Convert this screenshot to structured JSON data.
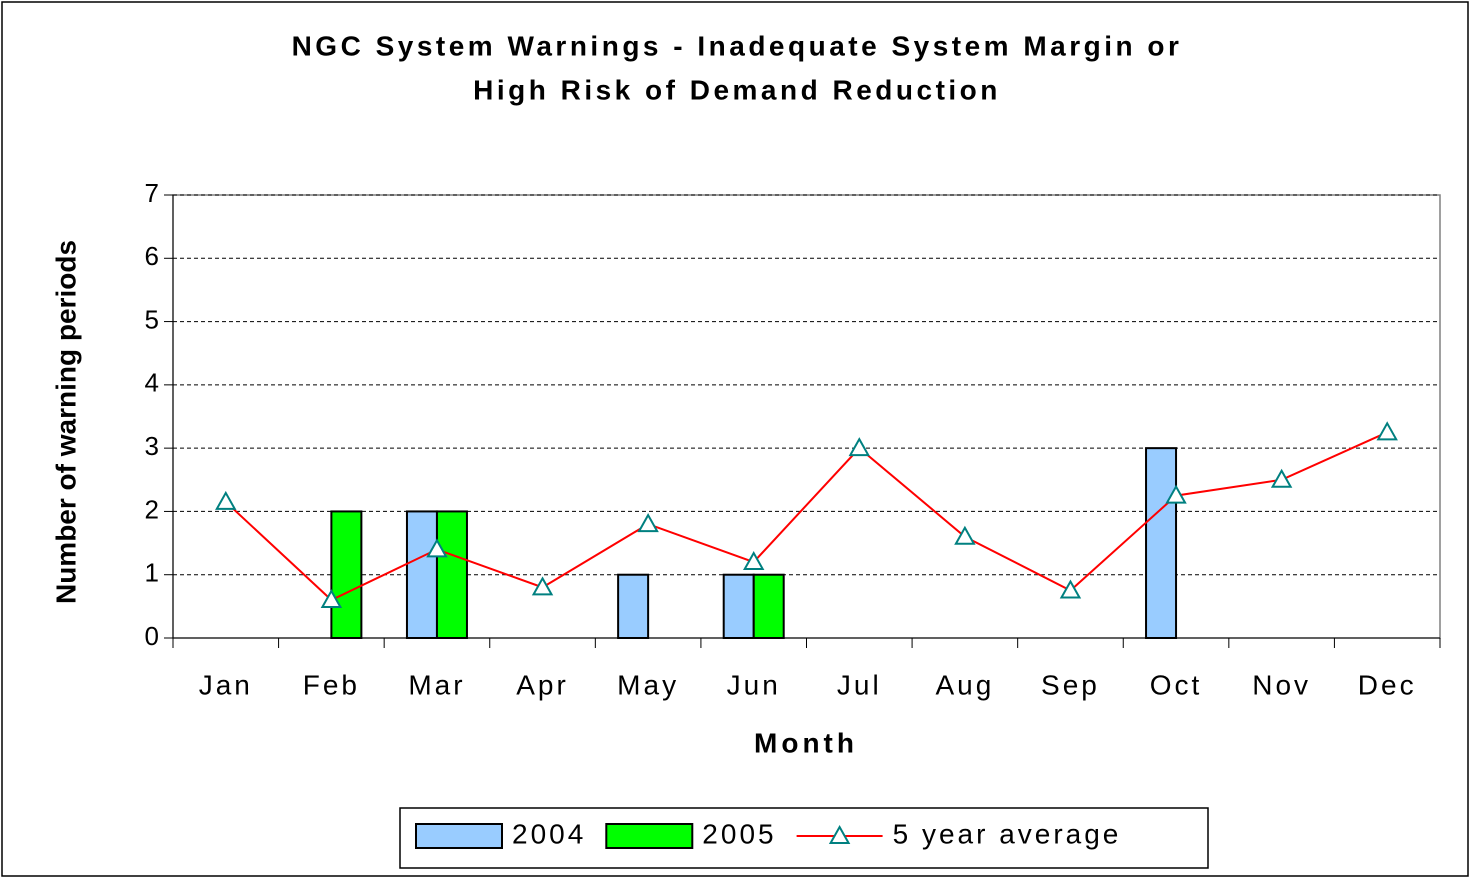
{
  "chart_data": {
    "type": "bar_line",
    "title": [
      "NGC System Warnings - Inadequate System Margin or",
      "High Risk of Demand Reduction"
    ],
    "x_label": "Month",
    "y_label": "Number of warning periods",
    "categories": [
      "Jan",
      "Feb",
      "Mar",
      "Apr",
      "May",
      "Jun",
      "Jul",
      "Aug",
      "Sep",
      "Oct",
      "Nov",
      "Dec"
    ],
    "series": [
      {
        "name": "2004",
        "type": "bar",
        "color": "#99ccff",
        "values": [
          0,
          0,
          2,
          0,
          1,
          1,
          0,
          0,
          0,
          3,
          0,
          0
        ]
      },
      {
        "name": "2005",
        "type": "bar",
        "color": "#00ff00",
        "values": [
          0,
          2,
          2,
          0,
          0,
          1,
          0,
          0,
          0,
          0,
          0,
          0
        ]
      },
      {
        "name": "5 year average",
        "type": "line",
        "color": "#ff0000",
        "marker_color": "#008080",
        "values": [
          2.15,
          0.6,
          1.4,
          0.8,
          1.8,
          1.2,
          3.0,
          1.6,
          0.75,
          2.25,
          2.5,
          3.25
        ]
      }
    ],
    "ylim": [
      0,
      7
    ],
    "yticks": [
      0,
      1,
      2,
      3,
      4,
      5,
      6,
      7
    ],
    "grid": true,
    "legend": "bottom"
  }
}
